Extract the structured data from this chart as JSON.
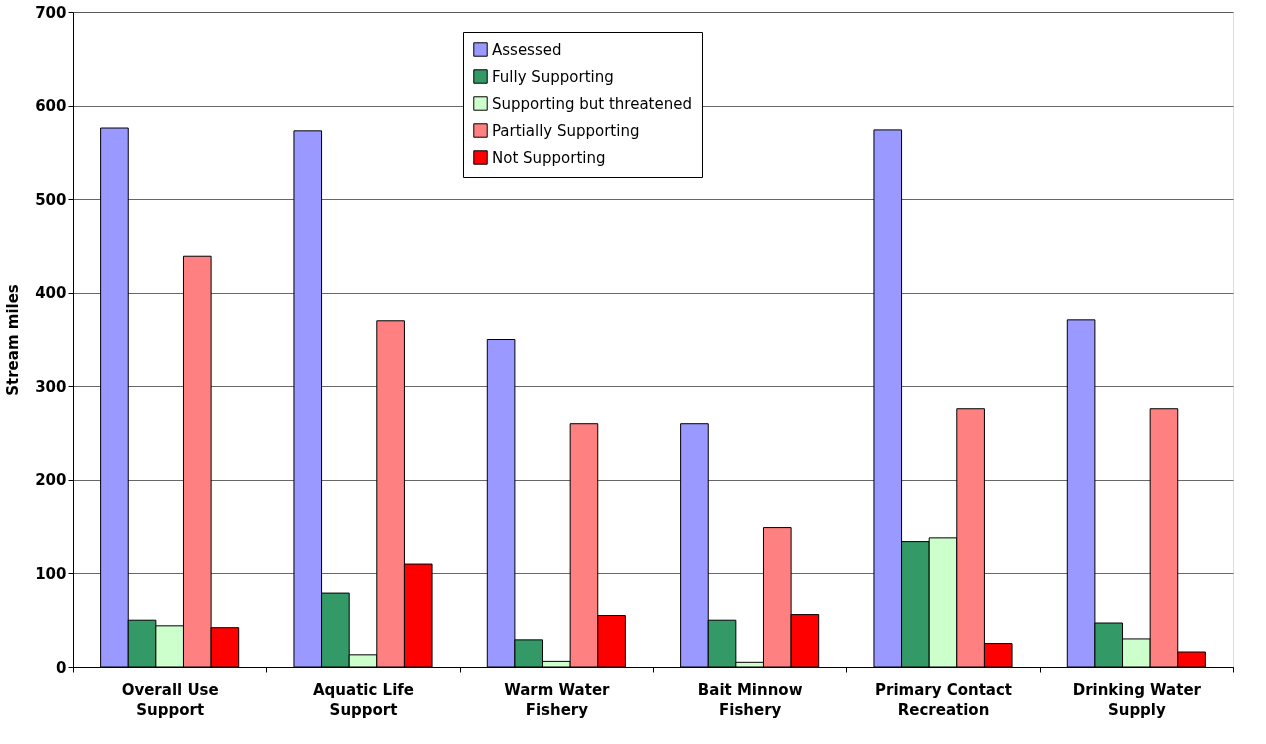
{
  "chart_data": {
    "type": "bar",
    "ylabel": "Stream miles",
    "categories": [
      "Overall Use Support",
      "Aquatic Life Support",
      "Warm Water Fishery",
      "Bait Minnow Fishery",
      "Primary Contact Recreation",
      "Drinking Water Supply"
    ],
    "series": [
      {
        "name": "Assessed",
        "color": "#9999ff",
        "values": [
          576,
          573,
          350,
          260,
          574,
          371
        ]
      },
      {
        "name": "Fully Supporting",
        "color": "#339966",
        "values": [
          50,
          79,
          29,
          50,
          134,
          47
        ]
      },
      {
        "name": "Supporting but threatened",
        "color": "#ccffcc",
        "values": [
          44,
          13,
          6,
          5,
          138,
          30
        ]
      },
      {
        "name": "Partially Supporting",
        "color": "#ff8080",
        "values": [
          439,
          370,
          260,
          149,
          276,
          276
        ]
      },
      {
        "name": "Not Supporting",
        "color": "#ff0000",
        "values": [
          42,
          110,
          55,
          56,
          25,
          16
        ]
      }
    ],
    "ylim": [
      0,
      700
    ],
    "yticks": [
      0,
      100,
      200,
      300,
      400,
      500,
      600,
      700
    ],
    "grid": "y",
    "legend": "top"
  }
}
